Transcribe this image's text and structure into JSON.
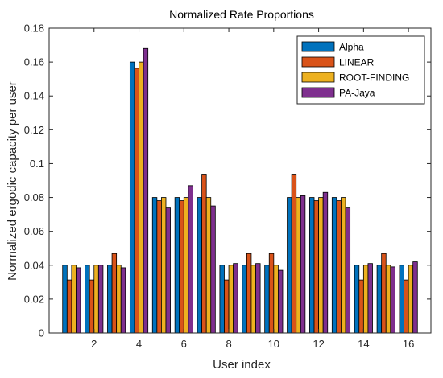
{
  "chart_data": {
    "type": "bar",
    "title": "Normalized Rate Proportions",
    "xlabel": "User index",
    "ylabel": "Normalized ergodic capacity per user",
    "ylim": [
      0,
      0.18
    ],
    "yticks": [
      "0",
      "0.02",
      "0.04",
      "0.06",
      "0.08",
      "0.1",
      "0.12",
      "0.14",
      "0.16",
      "0.18"
    ],
    "xticks": [
      2,
      4,
      6,
      8,
      10,
      12,
      14,
      16
    ],
    "categories": [
      1,
      2,
      3,
      4,
      5,
      6,
      7,
      8,
      9,
      10,
      11,
      12,
      13,
      14,
      15,
      16
    ],
    "legend_position": "top-right",
    "series": [
      {
        "name": "Alpha",
        "color": "#0072BD",
        "values": [
          0.04,
          0.04,
          0.04,
          0.16,
          0.08,
          0.08,
          0.08,
          0.04,
          0.04,
          0.04,
          0.08,
          0.08,
          0.08,
          0.04,
          0.04,
          0.04
        ]
      },
      {
        "name": "LINEAR",
        "color": "#D95319",
        "values": [
          0.0313,
          0.0313,
          0.0469,
          0.1563,
          0.0781,
          0.0781,
          0.0938,
          0.0313,
          0.0469,
          0.0469,
          0.0938,
          0.0781,
          0.0781,
          0.0313,
          0.0469,
          0.0313
        ]
      },
      {
        "name": "ROOT-FINDING",
        "color": "#EDB120",
        "values": [
          0.04,
          0.04,
          0.04,
          0.16,
          0.08,
          0.08,
          0.08,
          0.04,
          0.04,
          0.04,
          0.08,
          0.08,
          0.08,
          0.04,
          0.04,
          0.04
        ]
      },
      {
        "name": "PA-Jaya",
        "color": "#7E2F8E",
        "values": [
          0.0385,
          0.04,
          0.0385,
          0.168,
          0.0738,
          0.087,
          0.075,
          0.041,
          0.041,
          0.037,
          0.081,
          0.083,
          0.0738,
          0.041,
          0.039,
          0.042
        ]
      }
    ]
  }
}
